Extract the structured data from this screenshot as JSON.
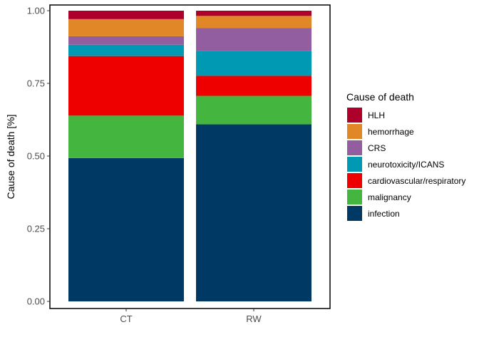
{
  "chart_data": {
    "type": "bar",
    "stacked": true,
    "categories": [
      "CT",
      "RW"
    ],
    "ylabel": "Cause of death [%]",
    "ylim": [
      0,
      1
    ],
    "yticks": [
      "0.00",
      "0.25",
      "0.50",
      "0.75",
      "1.00"
    ],
    "grid": false,
    "legend": {
      "title": "Cause of death",
      "position": "right"
    },
    "series": [
      {
        "name": "infection",
        "color": "#003964",
        "values": [
          0.493,
          0.609
        ]
      },
      {
        "name": "malignancy",
        "color": "#44B53F",
        "values": [
          0.146,
          0.098
        ]
      },
      {
        "name": "cardiovascular/respiratory",
        "color": "#EE0000",
        "values": [
          0.205,
          0.069
        ]
      },
      {
        "name": "neurotoxicity/ICANS",
        "color": "#0099B4",
        "values": [
          0.039,
          0.086
        ]
      },
      {
        "name": "CRS",
        "color": "#925E9F",
        "values": [
          0.029,
          0.078
        ]
      },
      {
        "name": "hemorrhage",
        "color": "#E18727",
        "values": [
          0.059,
          0.042
        ]
      },
      {
        "name": "HLH",
        "color": "#AD002A",
        "values": [
          0.029,
          0.018
        ]
      }
    ]
  }
}
